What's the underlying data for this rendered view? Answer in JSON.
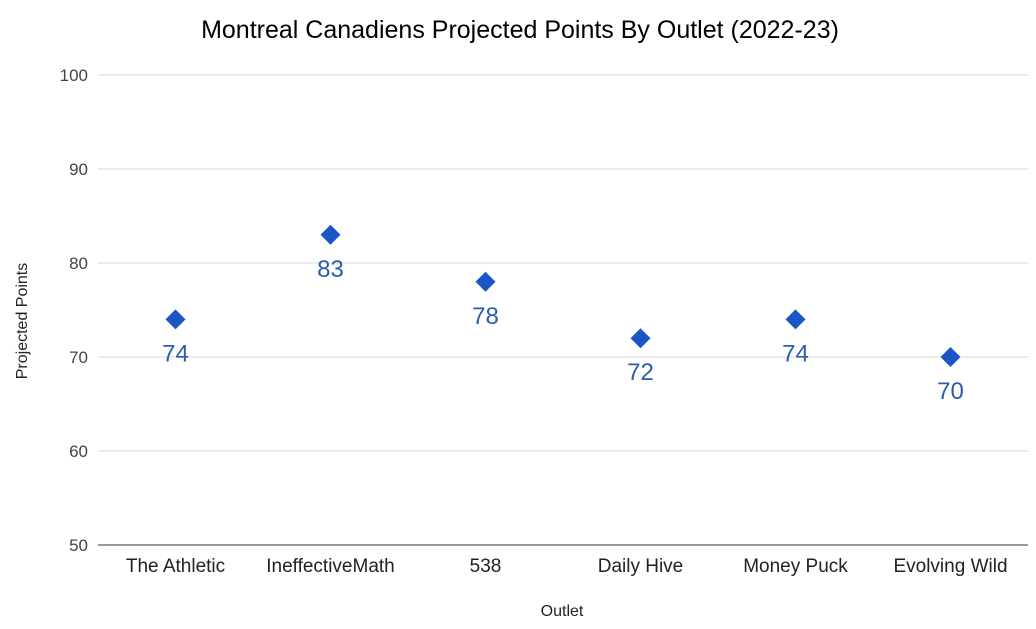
{
  "chart_data": {
    "type": "scatter",
    "title": "Montreal Canadiens Projected Points By Outlet (2022-23)",
    "xlabel": "Outlet",
    "ylabel": "Projected Points",
    "categories": [
      "The Athletic",
      "IneffectiveMath",
      "538",
      "Daily Hive",
      "Money Puck",
      "Evolving Wild"
    ],
    "series": [
      {
        "values": [
          74,
          83,
          78,
          72,
          74,
          70
        ]
      }
    ],
    "ylim": [
      50,
      100
    ],
    "yticks": [
      50,
      60,
      70,
      80,
      90,
      100
    ],
    "marker": "diamond",
    "marker_color": "#1a56c8",
    "label_color": "#2a5ea8",
    "grid": true,
    "legend": "none"
  }
}
